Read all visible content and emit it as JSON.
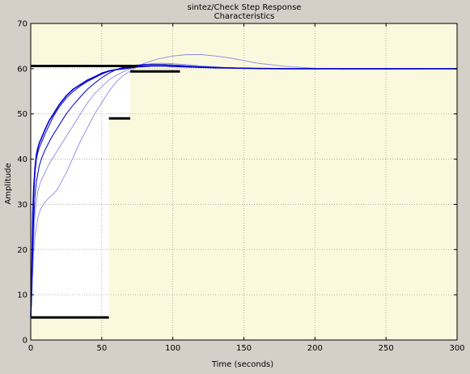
{
  "window": {
    "background": "#d4d0c8"
  },
  "chart_data": {
    "type": "line",
    "title": "sintez/Check Step Response",
    "subtitle": "Characteristics",
    "xlabel": "Time (seconds)",
    "ylabel": "Amplitude",
    "xlim": [
      0,
      300
    ],
    "ylim": [
      0,
      70
    ],
    "xticks": [
      0,
      50,
      100,
      150,
      200,
      250,
      300
    ],
    "yticks": [
      0,
      10,
      20,
      30,
      40,
      50,
      60,
      70
    ],
    "grid": true,
    "colors": {
      "plot_background": "#fbf9dd",
      "allowed_region": "#ffffff",
      "grid": "#a0a0a0",
      "bounds": "#000000",
      "response_main": "#0000cc",
      "response_faint": "#8a8ae8"
    },
    "constraint_bounds": [
      {
        "name": "upper-overshoot",
        "x": [
          0,
          75
        ],
        "y": 60.6
      },
      {
        "name": "upper-settling",
        "x": [
          70,
          105
        ],
        "y": 59.4
      },
      {
        "name": "lower-rise",
        "x": [
          0,
          55
        ],
        "y": 5
      },
      {
        "name": "lower-mid",
        "x": [
          55,
          70
        ],
        "y": 49
      }
    ],
    "series": [
      {
        "role": "response-main",
        "x": [
          0,
          0.5,
          1,
          1.5,
          2,
          3,
          4,
          5,
          6,
          8,
          10,
          13,
          16,
          20,
          25,
          30,
          35,
          40,
          45,
          50,
          55,
          60,
          65,
          70,
          75,
          80,
          85,
          90,
          95,
          100,
          110,
          120,
          130,
          140,
          150,
          160,
          180,
          200,
          250,
          300
        ],
        "y": [
          5,
          10,
          20,
          28,
          33,
          38,
          41,
          42.5,
          43.5,
          45,
          46.5,
          48.5,
          50,
          52,
          54,
          55.5,
          56.5,
          57.5,
          58.2,
          59,
          59.5,
          59.8,
          60,
          60.2,
          60.4,
          60.5,
          60.6,
          60.6,
          60.6,
          60.5,
          60.4,
          60.3,
          60.2,
          60.15,
          60.1,
          60.05,
          60,
          60,
          60,
          60
        ]
      },
      {
        "role": "response-variant",
        "x": [
          0,
          0.5,
          1,
          2,
          3,
          4,
          5,
          6,
          8,
          10,
          13,
          16,
          20,
          25,
          30,
          35,
          40,
          45,
          50,
          55,
          60,
          65,
          70,
          75,
          80,
          85,
          90,
          95,
          100,
          110,
          120,
          130,
          140,
          150,
          160,
          180,
          200,
          250,
          300
        ],
        "y": [
          5,
          9,
          18,
          31,
          37,
          40,
          41.5,
          42.5,
          44,
          45.5,
          47.5,
          49.5,
          51.5,
          53.5,
          55,
          56.2,
          57.2,
          58,
          58.8,
          59.4,
          59.8,
          60.1,
          60.4,
          60.6,
          60.8,
          60.9,
          60.9,
          60.9,
          60.8,
          60.6,
          60.4,
          60.3,
          60.2,
          60.1,
          60.05,
          60,
          60,
          60,
          60
        ]
      },
      {
        "role": "response-variant",
        "x": [
          0,
          1,
          2,
          3,
          4,
          6,
          8,
          10,
          15,
          20,
          25,
          30,
          35,
          40,
          45,
          50,
          55,
          60,
          65,
          70,
          75,
          80,
          90,
          100,
          110,
          120,
          130,
          140,
          150,
          170,
          200,
          250,
          300
        ],
        "y": [
          5,
          15,
          26,
          32,
          35,
          38.5,
          40.5,
          42,
          45,
          47.5,
          50,
          52,
          53.8,
          55.5,
          56.8,
          58,
          59,
          59.8,
          60.3,
          60.6,
          60.8,
          60.9,
          60.9,
          60.8,
          60.6,
          60.4,
          60.3,
          60.2,
          60.1,
          60,
          60,
          60,
          60
        ]
      },
      {
        "role": "response-faint",
        "x": [
          0,
          1,
          2,
          3,
          5,
          7,
          10,
          13,
          16,
          20,
          25,
          30,
          35,
          40,
          45,
          50,
          55,
          60,
          65,
          70,
          75,
          80,
          85,
          90,
          95,
          100,
          110,
          120,
          130,
          140,
          150,
          170,
          200,
          250,
          300
        ],
        "y": [
          5,
          13,
          22,
          28,
          33,
          35,
          37,
          39,
          40.5,
          42.5,
          45,
          47.5,
          50,
          52.5,
          54.5,
          56,
          57.5,
          58.5,
          59.3,
          60,
          60.5,
          60.9,
          61.1,
          61.2,
          61.2,
          61.1,
          60.9,
          60.6,
          60.4,
          60.2,
          60.1,
          60,
          60,
          60,
          60
        ]
      },
      {
        "role": "response-faint",
        "x": [
          0,
          1,
          2,
          3,
          5,
          7,
          10,
          13,
          15,
          18,
          20,
          25,
          30,
          35,
          40,
          45,
          50,
          55,
          60,
          65,
          70,
          75,
          80,
          90,
          100,
          110,
          120,
          130,
          140,
          150,
          160,
          180,
          200,
          220,
          250,
          300
        ],
        "y": [
          5,
          12,
          19,
          23,
          27,
          29,
          30.5,
          31.5,
          32,
          33,
          34,
          37,
          40.5,
          44,
          47,
          50,
          52.5,
          55,
          57,
          58.5,
          59.5,
          60.5,
          61.2,
          62.2,
          62.8,
          63.1,
          63.1,
          62.8,
          62.4,
          61.8,
          61.2,
          60.5,
          60.1,
          59.9,
          59.9,
          60
        ]
      }
    ]
  }
}
